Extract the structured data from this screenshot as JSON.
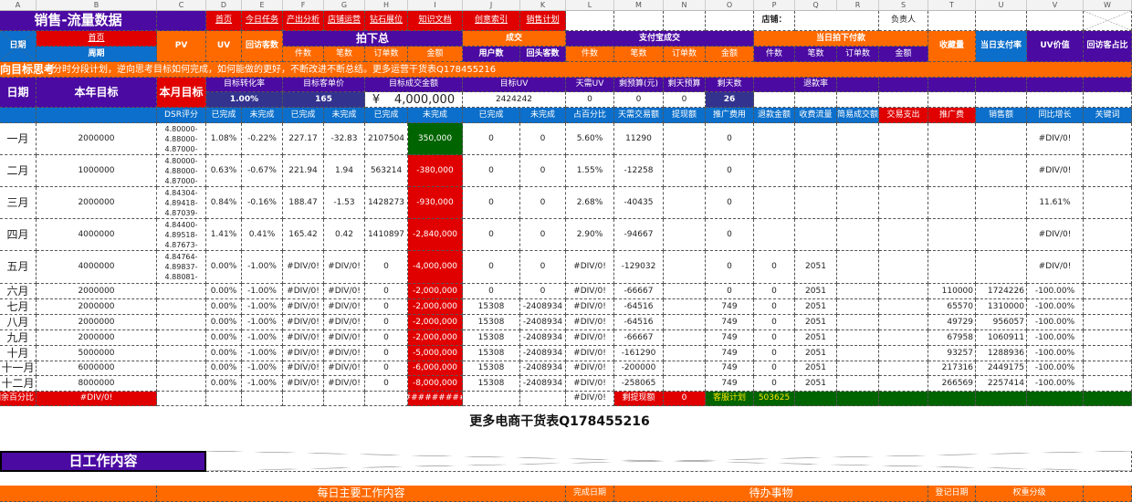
{
  "column_letters": [
    "A",
    "B",
    "C",
    "D",
    "E",
    "F",
    "G",
    "H",
    "I",
    "J",
    "K",
    "L",
    "M",
    "N",
    "O",
    "P",
    "Q",
    "R",
    "S",
    "T",
    "U",
    "V",
    "W"
  ],
  "title": "销售-流量数据",
  "nav_links": [
    "首页",
    "今日任务",
    "产出分析",
    "店铺运营",
    "钻石展位",
    "知识文档",
    "创意索引",
    "销售计划"
  ],
  "shop_label": "店铺：",
  "owner_label": "负责人",
  "header": {
    "date": "日期",
    "home_link": "首页",
    "period": "周期",
    "pv": "PV",
    "uv": "UV",
    "return_visitors": "回访客数",
    "ordered_total": "拍下总",
    "deal": "成交",
    "alipay_deal": "支付宝成交",
    "same_day_paid": "当日拍下付款",
    "favorites": "收藏量",
    "same_day_pay_rate": "当日支付率",
    "uv_value": "UV价值",
    "return_visitor_ratio": "回访客占比",
    "ordered_sub": [
      "件数",
      "笔数",
      "订单数",
      "金额"
    ],
    "deal_sub": [
      "用户数",
      "回头客数"
    ],
    "alipay_sub": [
      "件数",
      "笔数",
      "订单数",
      "金额"
    ],
    "paid_sub": [
      "件数",
      "笔数",
      "订单数",
      "金额"
    ]
  },
  "slogan": {
    "bold": "逆向目标思考",
    "text": "－分时分段计划，逆向思考目标如何完成，如何能做的更好，不断改进不断总结。更多运营干货表Q178455216"
  },
  "targets": {
    "date": "日期",
    "year_target": "本年目标",
    "month_target": "本月目标",
    "conv_rate_label": "目标转化率",
    "conv_rate": "1.00%",
    "aov_label": "目标客单价",
    "aov": "165",
    "amount_label": "目标成交金额",
    "amount_currency": "¥",
    "amount": "4,000,000",
    "uv_label": "目标UV",
    "uv": "2424242",
    "daily_uv_label": "天需UV",
    "daily_uv": "0",
    "budget_left_label": "剩预算(元)",
    "budget_left": "0",
    "daily_budget_left_label": "剩天预算",
    "daily_budget_left": "0",
    "days_left_label": "剩天数",
    "days_left": "26",
    "refund_rate_label": "退款率"
  },
  "subheader": [
    "DSR评分",
    "已完成",
    "未完成",
    "已完成",
    "未完成",
    "已完成",
    "未完成",
    "已完成",
    "未完成",
    "占百分比",
    "天需交易额",
    "提现额",
    "推广费用",
    "退款金额",
    "收费流量",
    "简易成交额",
    "交易支出",
    "推广费",
    "销售额",
    "同比增长",
    "关键词"
  ],
  "rows": [
    {
      "month": "一月",
      "target": "2000000",
      "cells": [
        "4.80000-\n4.88000-\n4.87000-",
        "1.08%",
        "-0.22%",
        "227.17",
        "-32.83",
        "2107504",
        "350,000",
        "0",
        "0",
        "5.60%",
        "11290",
        "",
        "0",
        "",
        "",
        "",
        "",
        "",
        "",
        "#DIV/0!",
        ""
      ]
    },
    {
      "month": "二月",
      "target": "1000000",
      "cells": [
        "4.80000-\n4.88000-\n4.87000-",
        "0.63%",
        "-0.67%",
        "221.94",
        "1.94",
        "563214",
        "-380,000",
        "0",
        "0",
        "1.55%",
        "-12258",
        "",
        "0",
        "",
        "",
        "",
        "",
        "",
        "",
        "#DIV/0!",
        ""
      ]
    },
    {
      "month": "三月",
      "target": "2000000",
      "cells": [
        "4.84304-\n4.89418-\n4.87039-",
        "0.84%",
        "-0.16%",
        "188.47",
        "-1.53",
        "1428273",
        "-930,000",
        "0",
        "0",
        "2.68%",
        "-40435",
        "",
        "0",
        "",
        "",
        "",
        "",
        "",
        "",
        "11.61%",
        ""
      ]
    },
    {
      "month": "四月",
      "target": "4000000",
      "cells": [
        "4.84400-\n4.89518-\n4.87673-",
        "1.41%",
        "0.41%",
        "165.42",
        "0.42",
        "1410897",
        "-2,840,000",
        "0",
        "0",
        "2.90%",
        "-94667",
        "",
        "0",
        "",
        "",
        "",
        "",
        "",
        "",
        "#DIV/0!",
        ""
      ]
    },
    {
      "month": "五月",
      "target": "4000000",
      "cells": [
        "4.84764-\n4.89837-\n4.88081-",
        "0.00%",
        "-1.00%",
        "#DIV/0!",
        "#DIV/0!",
        "0",
        "-4,000,000",
        "0",
        "0",
        "#DIV/0!",
        "-129032",
        "",
        "0",
        "0",
        "2051",
        "",
        "",
        "",
        "",
        "#DIV/0!",
        ""
      ]
    },
    {
      "month": "六月",
      "target": "2000000",
      "cells": [
        "",
        "0.00%",
        "-1.00%",
        "#DIV/0!",
        "#DIV/0!",
        "0",
        "-2,000,000",
        "0",
        "0",
        "#DIV/0!",
        "-66667",
        "",
        "0",
        "0",
        "2051",
        "",
        "",
        "110000",
        "1724226",
        "-100.00%",
        ""
      ]
    },
    {
      "month": "七月",
      "target": "2000000",
      "cells": [
        "",
        "0.00%",
        "-1.00%",
        "#DIV/0!",
        "#DIV/0!",
        "0",
        "-2,000,000",
        "15308",
        "-2408934",
        "#DIV/0!",
        "-64516",
        "",
        "749",
        "0",
        "2051",
        "",
        "",
        "65570",
        "1310000",
        "-100.00%",
        ""
      ]
    },
    {
      "month": "八月",
      "target": "2000000",
      "cells": [
        "",
        "0.00%",
        "-1.00%",
        "#DIV/0!",
        "#DIV/0!",
        "0",
        "-2,000,000",
        "15308",
        "-2408934",
        "#DIV/0!",
        "-64516",
        "",
        "749",
        "0",
        "2051",
        "",
        "",
        "49729",
        "956057",
        "-100.00%",
        ""
      ]
    },
    {
      "month": "九月",
      "target": "2000000",
      "cells": [
        "",
        "0.00%",
        "-1.00%",
        "#DIV/0!",
        "#DIV/0!",
        "0",
        "-2,000,000",
        "15308",
        "-2408934",
        "#DIV/0!",
        "-66667",
        "",
        "749",
        "0",
        "2051",
        "",
        "",
        "67958",
        "1060911",
        "-100.00%",
        ""
      ]
    },
    {
      "month": "十月",
      "target": "5000000",
      "cells": [
        "",
        "0.00%",
        "-1.00%",
        "#DIV/0!",
        "#DIV/0!",
        "0",
        "-5,000,000",
        "15308",
        "-2408934",
        "#DIV/0!",
        "-161290",
        "",
        "749",
        "0",
        "2051",
        "",
        "",
        "93257",
        "1288936",
        "-100.00%",
        ""
      ]
    },
    {
      "month": "十一月",
      "target": "6000000",
      "cells": [
        "",
        "0.00%",
        "-1.00%",
        "#DIV/0!",
        "#DIV/0!",
        "0",
        "-6,000,000",
        "15308",
        "-2408934",
        "#DIV/0!",
        "-200000",
        "",
        "749",
        "0",
        "2051",
        "",
        "",
        "217316",
        "2449175",
        "-100.00%",
        ""
      ]
    },
    {
      "month": "十二月",
      "target": "8000000",
      "cells": [
        "",
        "0.00%",
        "-1.00%",
        "#DIV/0!",
        "#DIV/0!",
        "0",
        "-8,000,000",
        "15308",
        "-2408934",
        "#DIV/0!",
        "-258065",
        "",
        "749",
        "0",
        "2051",
        "",
        "",
        "266569",
        "2257414",
        "-100.00%",
        ""
      ]
    }
  ],
  "summary": {
    "remaining_pct_label": "剩余百分比",
    "remaining_pct": "#DIV/0!",
    "amount_overflow": "###########",
    "ratio": "#DIV/0!",
    "withdraw_left_label": "剩提现额",
    "withdraw_left": "0",
    "cs_plan_label": "客服计划",
    "cs_plan": "503625"
  },
  "banner": "更多电商干货表Q178455216",
  "work": {
    "title": "日工作内容",
    "main": "每日主要工作内容",
    "done_date": "完成日期",
    "todo": "待办事物",
    "reg_date": "登记日期",
    "weight": "权重分级"
  },
  "colors": {
    "purple": "#4b0aa2",
    "orange": "#ff6a00",
    "red": "#e00000",
    "blue": "#0b6fcb",
    "green": "#006400"
  }
}
